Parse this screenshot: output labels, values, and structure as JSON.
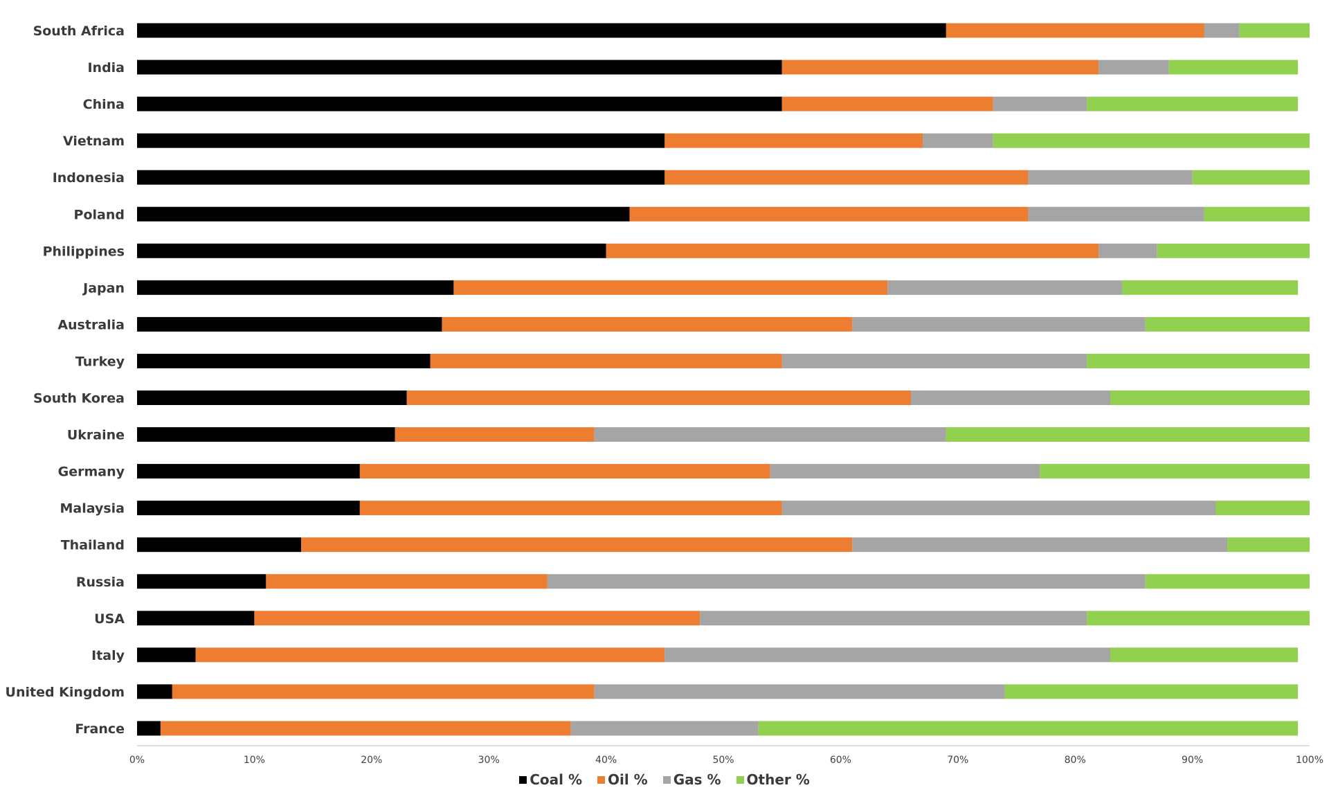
{
  "chart_data": {
    "type": "bar",
    "orientation": "horizontal",
    "stacked": true,
    "categories": [
      "South Africa",
      "India",
      "China",
      "Vietnam",
      "Indonesia",
      "Poland",
      "Philippines",
      "Japan",
      "Australia",
      "Turkey",
      "South Korea",
      "Ukraine",
      "Germany",
      "Malaysia",
      "Thailand",
      "Russia",
      "USA",
      "Italy",
      "United Kingdom",
      "France"
    ],
    "series": [
      {
        "name": "Coal %",
        "color": "#000000",
        "values": [
          69,
          55,
          55,
          45,
          45,
          42,
          40,
          27,
          26,
          25,
          23,
          22,
          19,
          19,
          14,
          11,
          10,
          5,
          3,
          2
        ]
      },
      {
        "name": "Oil %",
        "color": "#ED7D31",
        "values": [
          22,
          27,
          18,
          22,
          31,
          34,
          42,
          37,
          35,
          30,
          43,
          17,
          35,
          36,
          47,
          24,
          38,
          40,
          36,
          35
        ]
      },
      {
        "name": "Gas %",
        "color": "#A5A5A5",
        "values": [
          3,
          6,
          8,
          6,
          14,
          15,
          5,
          20,
          25,
          26,
          17,
          30,
          23,
          37,
          32,
          51,
          33,
          38,
          35,
          16
        ]
      },
      {
        "name": "Other %",
        "color": "#92D050",
        "values": [
          6,
          11,
          18,
          27,
          10,
          9,
          13,
          15,
          14,
          19,
          17,
          31,
          23,
          8,
          7,
          14,
          19,
          16,
          25,
          46
        ]
      }
    ],
    "x_ticks": [
      "0%",
      "10%",
      "20%",
      "30%",
      "40%",
      "50%",
      "60%",
      "70%",
      "80%",
      "90%",
      "100%"
    ],
    "xlim": [
      0,
      100
    ],
    "grid": false,
    "legend_position": "bottom"
  }
}
